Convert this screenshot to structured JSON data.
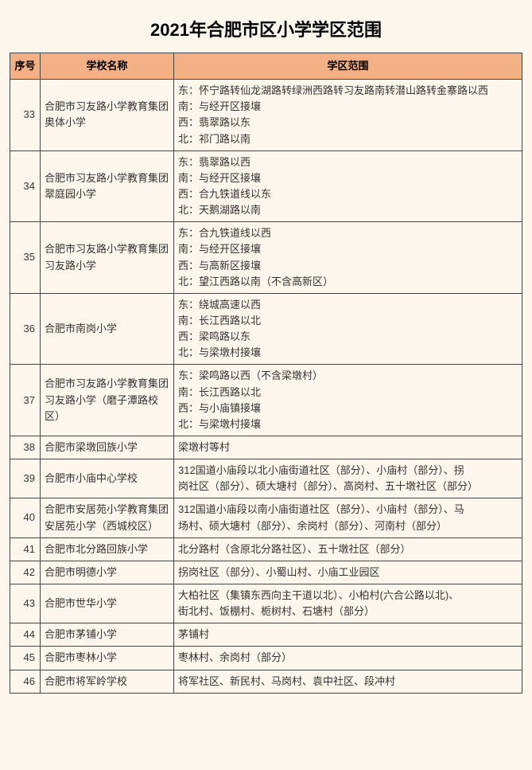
{
  "title": "2021年合肥市区小学学区范围",
  "columns": [
    "序号",
    "学校名称",
    "学区范围"
  ],
  "header_bg": "#f3b084",
  "page_bg": "#fdf6ec",
  "border_color": "#444444",
  "rows": [
    {
      "idx": "33",
      "name": "合肥市习友路小学教育集团奥体小学",
      "scope_lines": [
        "东：怀宁路转仙龙湖路转绿洲西路转习友路南转潜山路转金寨路以西",
        "南：与经开区接壤",
        "西：翡翠路以东",
        "北：祁门路以南"
      ]
    },
    {
      "idx": "34",
      "name": "合肥市习友路小学教育集团翠庭园小学",
      "scope_lines": [
        "东：翡翠路以西",
        "南：与经开区接壤",
        "西：合九铁道线以东",
        "北：天鹅湖路以南"
      ]
    },
    {
      "idx": "35",
      "name": "合肥市习友路小学教育集团习友路小学",
      "scope_lines": [
        "东：合九铁道线以西",
        "南：与经开区接壤",
        "西：与高新区接壤",
        "北：望江西路以南（不含高新区）"
      ]
    },
    {
      "idx": "36",
      "name": "合肥市南岗小学",
      "scope_lines": [
        "东：绕城高速以西",
        "南：长江西路以北",
        "西：梁鸣路以东",
        "北：与梁墩村接壤"
      ]
    },
    {
      "idx": "37",
      "name": "合肥市习友路小学教育集团习友路小学（磨子潭路校区）",
      "scope_lines": [
        "东：梁鸣路以西（不含梁墩村）",
        "南：长江西路以北",
        "西：与小庙镇接壤",
        "北：与梁墩村接壤"
      ]
    },
    {
      "idx": "38",
      "name": "合肥市梁墩回族小学",
      "scope_lines": [
        "梁墩村等村"
      ]
    },
    {
      "idx": "39",
      "name": "合肥市小庙中心学校",
      "scope_lines": [
        "312国道小庙段以北小庙街道社区（部分）、小庙村（部分）、拐",
        "岗社区（部分）、硕大塘村（部分）、高岗村、五十墩社区（部分）"
      ]
    },
    {
      "idx": "40",
      "name": "合肥市安居苑小学教育集团安居苑小学（西城校区）",
      "scope_lines": [
        "312国道小庙段以南小庙街道社区（部分）、小庙村（部分）、马",
        "场村、硕大塘村（部分）、余岗村（部分）、河南村（部分）"
      ]
    },
    {
      "idx": "41",
      "name": "合肥市北分路回族小学",
      "scope_lines": [
        "北分路村（含原北分路社区）、五十墩社区（部分）"
      ]
    },
    {
      "idx": "42",
      "name": "合肥市明德小学",
      "scope_lines": [
        "拐岗社区（部分）、小蜀山村、小庙工业园区"
      ]
    },
    {
      "idx": "43",
      "name": "合肥市世华小学",
      "scope_lines": [
        "大柏社区（集镇东西向主干道以北）、小柏村(六合公路以北)、",
        "街北村、饭棚村、栀树村、石塘村（部分）"
      ]
    },
    {
      "idx": "44",
      "name": "合肥市茅铺小学",
      "scope_lines": [
        "茅铺村"
      ]
    },
    {
      "idx": "45",
      "name": "合肥市枣林小学",
      "scope_lines": [
        "枣林村、余岗村（部分）"
      ]
    },
    {
      "idx": "46",
      "name": "合肥市将军岭学校",
      "scope_lines": [
        "将军社区、新民村、马岗村、袁中社区、段冲村"
      ]
    }
  ]
}
